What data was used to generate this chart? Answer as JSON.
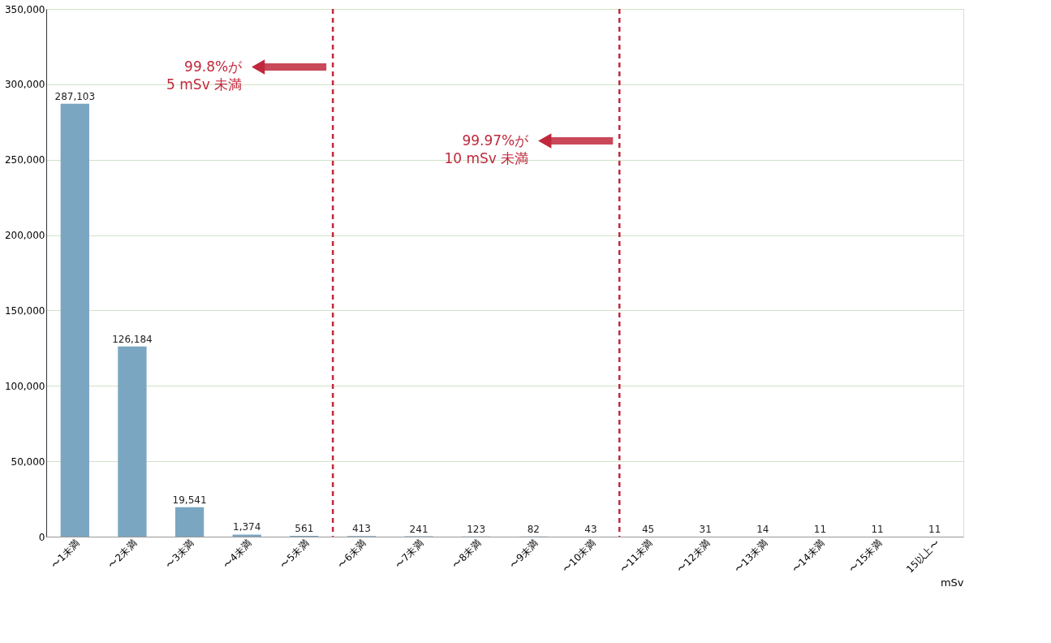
{
  "chart_data": {
    "type": "bar",
    "categories": [
      "〜1未満",
      "〜2未満",
      "〜3未満",
      "〜4未満",
      "〜5未満",
      "〜6未満",
      "〜7未満",
      "〜8未満",
      "〜9未満",
      "〜10未満",
      "〜11未満",
      "〜12未満",
      "〜13未満",
      "〜14未満",
      "〜15未満",
      "15以上〜"
    ],
    "values": [
      287103,
      126184,
      19541,
      1374,
      561,
      413,
      241,
      123,
      82,
      43,
      45,
      31,
      14,
      11,
      11,
      11
    ],
    "value_labels": [
      "287,103",
      "126,184",
      "19,541",
      "1,374",
      "561",
      "413",
      "241",
      "123",
      "82",
      "43",
      "45",
      "31",
      "14",
      "11",
      "11",
      "11"
    ],
    "color": "#7ba6c2",
    "xlabel": "mSv",
    "ylim": [
      0,
      350000
    ],
    "yticks": [
      0,
      {
        "value": 50000,
        "label": "50,000"
      },
      {
        "value": 100000,
        "label": "100,000"
      },
      {
        "value": 150000,
        "label": "150,000"
      },
      {
        "value": 200000,
        "label": "200,000"
      },
      {
        "value": 250000,
        "label": "250,000"
      },
      {
        "value": 300000,
        "label": "300,000"
      },
      {
        "value": 350000,
        "label": "350,000"
      }
    ],
    "grid": "y",
    "annotations": [
      "99.8%が\n5 mSv 未満",
      "99.97%が\n10 mSv 未満"
    ]
  }
}
